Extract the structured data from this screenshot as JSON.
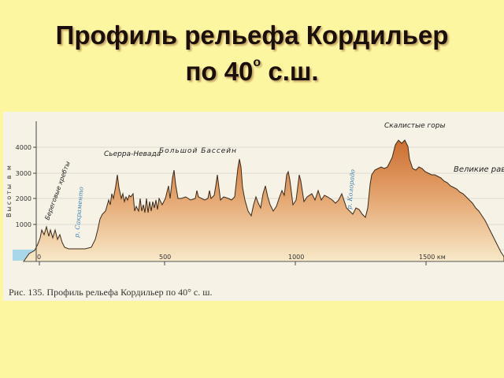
{
  "slide": {
    "title_line1": "Профиль рельефа Кордильер",
    "title_line2_pre": "по 40",
    "title_line2_sup": "о",
    "title_line2_post": " с.ш."
  },
  "figure": {
    "y_axis_label": "Высоты в м",
    "y_ticks": [
      "4000",
      "3000",
      "2000",
      "1000"
    ],
    "x_ticks": [
      "0",
      "500",
      "1000",
      "1500 км"
    ],
    "labels": {
      "coastal": "Береговые хребты",
      "sierra": "Сьерра-Невада",
      "basin": "Большой Бассейн",
      "rocky": "Скалистые горы",
      "plains": "Великие равнины",
      "river_sacramento": "р. Сакраменто",
      "river_colorado": "р. Колорадо"
    },
    "caption": "Рис. 135. Профиль рельефа Кордильер по 40° с. ш."
  },
  "colors": {
    "background": "#fdf6a0",
    "terrain_top": "#cf7a3c",
    "terrain_bottom": "#f8e8c6",
    "water": "#a9d7ea",
    "river_label": "#3a7fb0"
  }
}
